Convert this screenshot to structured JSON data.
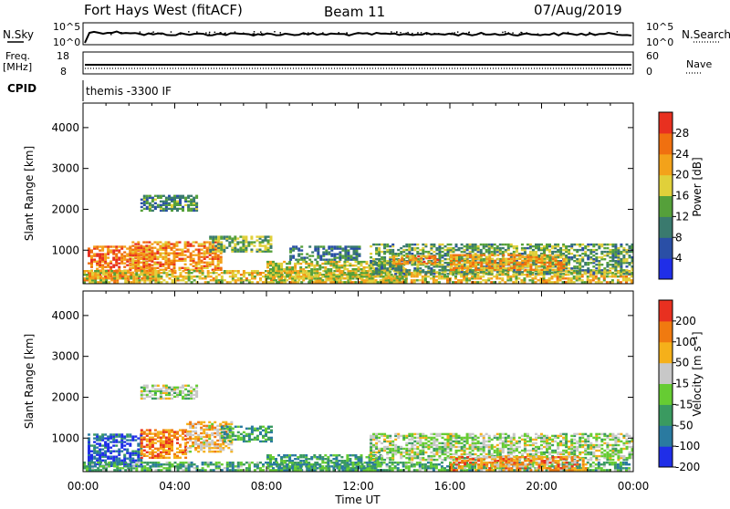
{
  "header": {
    "station": "Fort Hays West (fitACF)",
    "beam": "Beam 11",
    "date": "07/Aug/2019"
  },
  "top_panels": {
    "nsky_label": "N.Sky",
    "nsky_ticks": [
      "10^5",
      "10^0"
    ],
    "nsearch_label": "N.Search",
    "nsearch_ticks": [
      "10^5",
      "10^0"
    ],
    "freq_label_1": "Freq.",
    "freq_label_2": "[MHz]",
    "freq_ticks": [
      "18",
      "8"
    ],
    "nave_label": "Nave",
    "nave_ticks": [
      "60",
      "0"
    ],
    "cpid_label": "CPID",
    "cpid_value": "themis -3300 IF"
  },
  "chart_data": [
    {
      "type": "heatmap",
      "name": "power",
      "ylabel": "Slant Range [km]",
      "xlabel": "Time UT",
      "x_ticks": [
        "00:00",
        "04:00",
        "08:00",
        "12:00",
        "16:00",
        "20:00",
        "00:00"
      ],
      "x_range_hours": [
        0,
        24
      ],
      "y_ticks": [
        1000,
        2000,
        3000,
        4000
      ],
      "y_range_km": [
        180,
        4600
      ],
      "colorbar": {
        "label": "Power [dB]",
        "ticks": [
          "28",
          "24",
          "20",
          "16",
          "12",
          "8",
          "4"
        ],
        "range": [
          0,
          32
        ],
        "colors": [
          "#1f2ee8",
          "#2a4fa6",
          "#3a7a6e",
          "#55a03a",
          "#e0d03a",
          "#f3a21a",
          "#f07010",
          "#e83020"
        ]
      },
      "regions": [
        {
          "t0": 0.2,
          "t1": 3.0,
          "r0": 300,
          "r1": 1100,
          "level": 0.8
        },
        {
          "t0": 2.0,
          "t1": 6.0,
          "r0": 500,
          "r1": 1200,
          "level": 0.75
        },
        {
          "t0": 5.5,
          "t1": 8.2,
          "r0": 950,
          "r1": 1350,
          "level": 0.45
        },
        {
          "t0": 2.5,
          "t1": 5.0,
          "r0": 1950,
          "r1": 2350,
          "level": 0.35
        },
        {
          "t0": 0.0,
          "t1": 24.0,
          "r0": 200,
          "r1": 500,
          "level": 0.6
        },
        {
          "t0": 8.0,
          "t1": 14.0,
          "r0": 200,
          "r1": 700,
          "level": 0.55
        },
        {
          "t0": 9.0,
          "t1": 12.0,
          "r0": 750,
          "r1": 1100,
          "level": 0.3
        },
        {
          "t0": 12.5,
          "t1": 24.0,
          "r0": 400,
          "r1": 1150,
          "level": 0.4
        },
        {
          "t0": 16.0,
          "t1": 21.0,
          "r0": 500,
          "r1": 900,
          "level": 0.7
        },
        {
          "t0": 13.5,
          "t1": 15.5,
          "r0": 650,
          "r1": 850,
          "level": 0.75
        }
      ]
    },
    {
      "type": "heatmap",
      "name": "velocity",
      "ylabel": "Slant Range [km]",
      "xlabel": "Time UT",
      "x_ticks": [
        "00:00",
        "04:00",
        "08:00",
        "12:00",
        "16:00",
        "20:00",
        "00:00"
      ],
      "x_range_hours": [
        0,
        24
      ],
      "y_ticks": [
        1000,
        2000,
        3000,
        4000
      ],
      "y_range_km": [
        180,
        4600
      ],
      "colorbar": {
        "label": "Velocity [m s⁻¹]",
        "ticks": [
          "200",
          "100",
          "50",
          "15",
          "-15",
          "-50",
          "-100",
          "-200"
        ],
        "colors": [
          "#1f2ee8",
          "#2a7aa0",
          "#3a9a60",
          "#66cc33",
          "#c8c8c8",
          "#f5b01a",
          "#f07a10",
          "#e83020"
        ]
      },
      "regions": [
        {
          "t0": 0.2,
          "t1": 2.5,
          "r0": 300,
          "r1": 1100,
          "level": 0.15
        },
        {
          "t0": 2.5,
          "t1": 4.5,
          "r0": 500,
          "r1": 1200,
          "level": 0.8
        },
        {
          "t0": 4.5,
          "t1": 6.5,
          "r0": 650,
          "r1": 1400,
          "level": 0.65
        },
        {
          "t0": 6.0,
          "t1": 8.2,
          "r0": 900,
          "r1": 1300,
          "level": 0.3
        },
        {
          "t0": 2.5,
          "t1": 5.0,
          "r0": 1950,
          "r1": 2300,
          "level": 0.5
        },
        {
          "t0": 0.0,
          "t1": 24.0,
          "r0": 200,
          "r1": 400,
          "level": 0.35
        },
        {
          "t0": 8.0,
          "t1": 13.0,
          "r0": 200,
          "r1": 600,
          "level": 0.3
        },
        {
          "t0": 12.5,
          "t1": 24.0,
          "r0": 450,
          "r1": 1100,
          "level": 0.5
        },
        {
          "t0": 16.0,
          "t1": 22.0,
          "r0": 200,
          "r1": 550,
          "level": 0.75
        }
      ]
    }
  ]
}
